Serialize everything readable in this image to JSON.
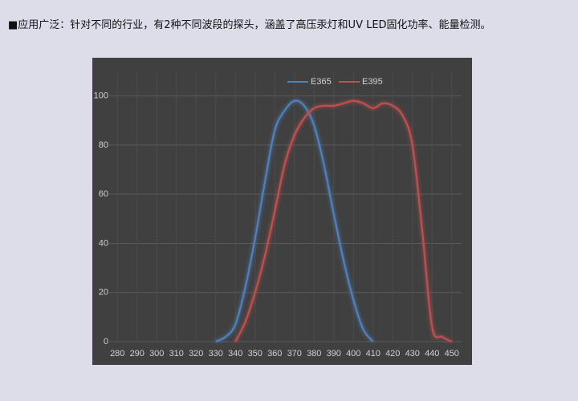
{
  "heading": "■应用广泛：针对不同的行业，有2种不同波段的探头，涵盖了高压汞灯和UV LED固化功率、能量检测。",
  "chart_data": {
    "type": "line",
    "series": [
      {
        "name": "E365",
        "color": "#4f81bd",
        "x": [
          330,
          335,
          340,
          345,
          350,
          355,
          360,
          365,
          370,
          375,
          380,
          385,
          390,
          395,
          400,
          405,
          410
        ],
        "values": [
          0,
          2,
          7,
          22,
          42,
          65,
          86,
          94,
          98,
          96,
          88,
          72,
          52,
          33,
          17,
          5,
          0
        ]
      },
      {
        "name": "E395",
        "color": "#c0504d",
        "x": [
          340,
          345,
          350,
          355,
          360,
          365,
          370,
          375,
          380,
          385,
          390,
          395,
          400,
          405,
          410,
          415,
          420,
          425,
          430,
          435,
          440,
          445,
          450
        ],
        "values": [
          0,
          8,
          20,
          35,
          53,
          72,
          84,
          91,
          95,
          96,
          96,
          97,
          98,
          97,
          95,
          97,
          96,
          92,
          80,
          45,
          6,
          2,
          0
        ]
      }
    ],
    "xlim": [
      275,
      455
    ],
    "xticks": [
      280,
      290,
      300,
      310,
      320,
      330,
      340,
      350,
      360,
      370,
      380,
      390,
      400,
      410,
      420,
      430,
      440,
      450
    ],
    "ylim": [
      0,
      110
    ],
    "yticks": [
      0,
      20,
      40,
      60,
      80,
      100
    ],
    "grid": true,
    "legend": "top"
  }
}
